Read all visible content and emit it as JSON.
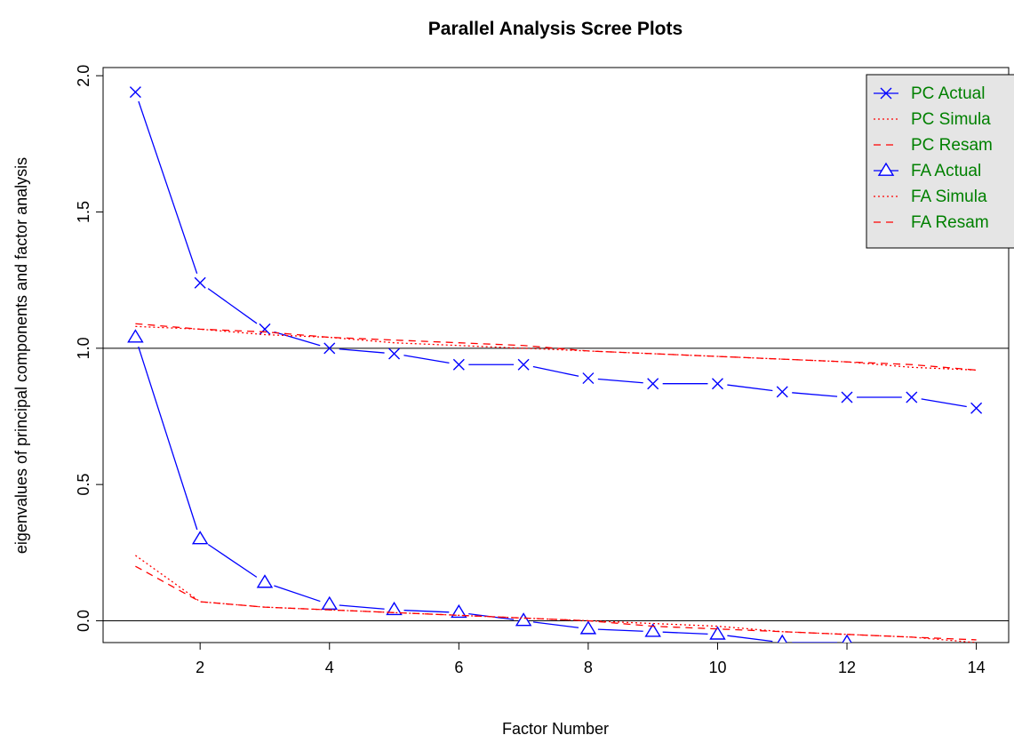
{
  "chart_data": {
    "type": "line",
    "title": "Parallel Analysis Scree Plots",
    "xlabel": "Factor Number",
    "ylabel": "eigenvalues of principal components and factor analysis",
    "xlim": [
      0.5,
      14.5
    ],
    "ylim": [
      -0.08,
      2.03
    ],
    "x_ticks": [
      2,
      4,
      6,
      8,
      10,
      12,
      14
    ],
    "y_ticks": [
      0.0,
      0.5,
      1.0,
      1.5,
      2.0
    ],
    "y_tick_labels": [
      "0.0",
      "0.5",
      "1.0",
      "1.5",
      "2.0"
    ],
    "hlines": [
      1.0,
      0.0
    ],
    "grid": false,
    "legend_position": "top-right",
    "x": [
      1,
      2,
      3,
      4,
      5,
      6,
      7,
      8,
      9,
      10,
      11,
      12,
      13,
      14
    ],
    "series": [
      {
        "name": "PC Actual Data",
        "legend_label": "PC  Actual",
        "color": "#0000ff",
        "line": "solid",
        "marker": "x",
        "values": [
          1.94,
          1.24,
          1.07,
          1.0,
          0.98,
          0.94,
          0.94,
          0.89,
          0.87,
          0.87,
          0.84,
          0.82,
          0.82,
          0.78
        ]
      },
      {
        "name": "PC Simulated Data",
        "legend_label": "PC  Simula",
        "color": "#ff0000",
        "line": "dotted",
        "marker": "none",
        "values": [
          1.08,
          1.07,
          1.05,
          1.04,
          1.02,
          1.01,
          1.0,
          0.99,
          0.98,
          0.97,
          0.96,
          0.95,
          0.93,
          0.92
        ]
      },
      {
        "name": "PC Resampled Data",
        "legend_label": "PC  Resam",
        "color": "#ff0000",
        "line": "dashed",
        "marker": "none",
        "values": [
          1.09,
          1.07,
          1.06,
          1.04,
          1.03,
          1.02,
          1.01,
          0.99,
          0.98,
          0.97,
          0.96,
          0.95,
          0.94,
          0.92
        ]
      },
      {
        "name": "FA Actual Data",
        "legend_label": "FA  Actual",
        "color": "#0000ff",
        "line": "solid",
        "marker": "triangle",
        "values": [
          1.04,
          0.3,
          0.14,
          0.06,
          0.04,
          0.03,
          0.0,
          -0.03,
          -0.04,
          -0.05,
          -0.08,
          -0.08,
          null,
          null
        ]
      },
      {
        "name": "FA Simulated Data",
        "legend_label": "FA  Simula",
        "color": "#ff0000",
        "line": "dotted",
        "marker": "none",
        "values": [
          0.24,
          0.07,
          0.05,
          0.04,
          0.03,
          0.02,
          0.01,
          0.0,
          -0.01,
          -0.02,
          -0.04,
          -0.05,
          -0.06,
          -0.08
        ]
      },
      {
        "name": "FA Resampled Data",
        "legend_label": "FA  Resam",
        "color": "#ff0000",
        "line": "dashed",
        "marker": "none",
        "values": [
          0.2,
          0.07,
          0.05,
          0.04,
          0.03,
          0.02,
          0.01,
          0.0,
          -0.02,
          -0.03,
          -0.04,
          -0.05,
          -0.06,
          -0.07
        ]
      }
    ],
    "legend": {
      "background": "#e5e5e5",
      "text_color": "#008000",
      "items": [
        "PC  Actual",
        "PC  Simula",
        "PC  Resam",
        "FA  Actual",
        "FA  Simula",
        "FA  Resam"
      ]
    }
  }
}
